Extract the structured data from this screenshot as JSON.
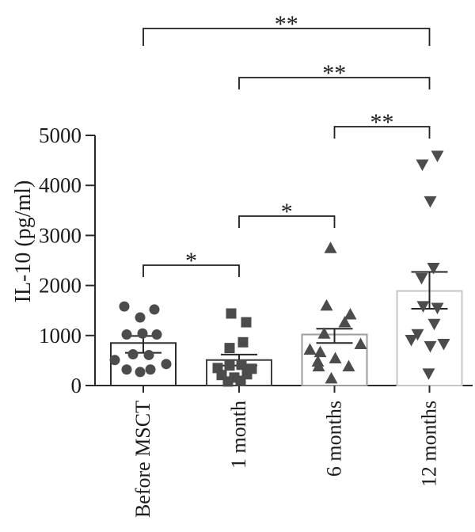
{
  "chart_data": {
    "type": "bar-scatter",
    "title": "",
    "ylabel": "IL-10 (pg/ml)",
    "xlabel": "",
    "ylim": [
      0,
      5000
    ],
    "yticks": [
      0,
      1000,
      2000,
      3000,
      4000,
      5000
    ],
    "categories": [
      "Before MSCT",
      "1 month",
      "6 months",
      "12 months"
    ],
    "axis_color": "#2a2a2a",
    "marker_color": "#4c4c4c",
    "bar_fill": "#ffffff",
    "series": [
      {
        "name": "Before MSCT",
        "marker": "circle",
        "bar_mean": 850,
        "sem_low": 655,
        "sem_high": 990,
        "bar_outline": "#2d2d2d",
        "points": [
          1580,
          1520,
          1360,
          1040,
          1020,
          1020,
          625,
          610,
          510,
          430,
          320,
          320,
          270
        ],
        "jitter": [
          -24,
          14,
          -4,
          -1,
          -21,
          17,
          -13,
          7,
          -36,
          29,
          -21,
          9,
          -4
        ]
      },
      {
        "name": "1 month",
        "marker": "square",
        "bar_mean": 510,
        "sem_low": 400,
        "sem_high": 620,
        "bar_outline": "#3f3f3f",
        "points": [
          1440,
          1265,
          865,
          750,
          415,
          400,
          350,
          335,
          225,
          210,
          160,
          95,
          80
        ],
        "jitter": [
          -10,
          9,
          5,
          -12,
          3,
          -12,
          -27,
          16,
          10,
          -22,
          -6,
          2,
          -14
        ]
      },
      {
        "name": "6 months",
        "marker": "triangle-up",
        "bar_mean": 1020,
        "sem_low": 850,
        "sem_high": 1135,
        "bar_outline": "#9c9c9c",
        "points": [
          2750,
          1600,
          1425,
          1265,
          1040,
          830,
          720,
          670,
          545,
          480,
          385,
          385,
          145
        ],
        "jitter": [
          -5,
          -10,
          20,
          13,
          -13,
          33,
          -31,
          -18,
          1,
          -21,
          18,
          -20,
          -4
        ]
      },
      {
        "name": "12 months",
        "marker": "triangle-down",
        "bar_mean": 1890,
        "sem_low": 1535,
        "sem_high": 2270,
        "bar_outline": "#c6c6c6",
        "points": [
          4590,
          4415,
          3680,
          2350,
          2145,
          1585,
          1550,
          1230,
          1025,
          910,
          830,
          785,
          240
        ],
        "jitter": [
          10,
          -9,
          1,
          5,
          -10,
          -8,
          10,
          6,
          -15,
          -23,
          18,
          1,
          -1
        ]
      }
    ],
    "significance": [
      {
        "from": 0,
        "to": 3,
        "label": "**"
      },
      {
        "from": 1,
        "to": 3,
        "label": "**"
      },
      {
        "from": 2,
        "to": 3,
        "label": "**"
      },
      {
        "from": 1,
        "to": 2,
        "label": "*"
      },
      {
        "from": 0,
        "to": 1,
        "label": "*"
      }
    ]
  }
}
